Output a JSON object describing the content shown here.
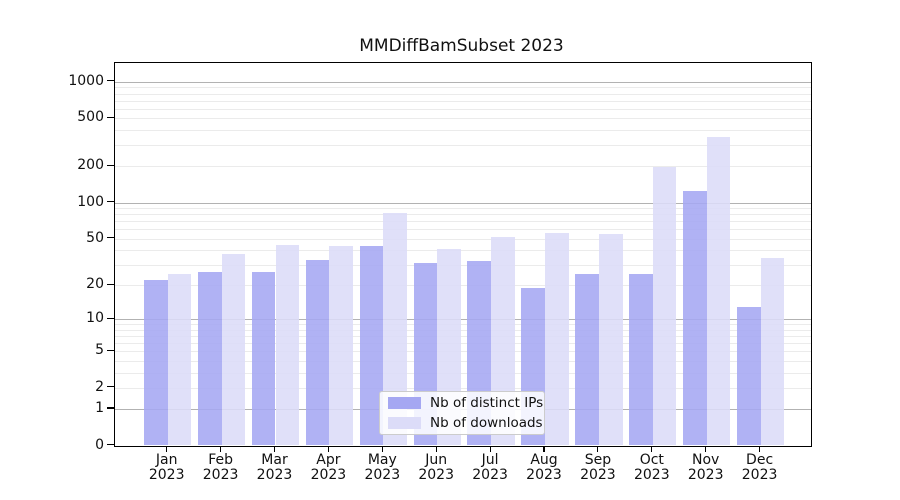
{
  "figure": {
    "title": "MMDiffBamSubset 2023"
  },
  "chart_data": {
    "type": "bar",
    "title": "MMDiffBamSubset 2023",
    "categories": [
      "Jan",
      "Feb",
      "Mar",
      "Apr",
      "May",
      "Jun",
      "Jul",
      "Aug",
      "Sep",
      "Oct",
      "Nov",
      "Dec"
    ],
    "year_label": "2023",
    "series": [
      {
        "name": "Nb of distinct IPs",
        "color": "#a5a7f2",
        "values": [
          22,
          26,
          26,
          33,
          43,
          31,
          32,
          19,
          25,
          25,
          126,
          13
        ]
      },
      {
        "name": "Nb of downloads",
        "color": "#dcdcf8",
        "values": [
          25,
          37,
          44,
          43,
          82,
          41,
          52,
          56,
          55,
          199,
          350,
          34
        ]
      }
    ],
    "y_scale": "log10(1+y)",
    "y_ticks": [
      0,
      1,
      2,
      5,
      10,
      20,
      50,
      100,
      200,
      500,
      1000
    ],
    "ylim": [
      0,
      1440
    ],
    "xlabel": "",
    "ylabel": "",
    "grid": "both",
    "legend_position": "lower center"
  }
}
